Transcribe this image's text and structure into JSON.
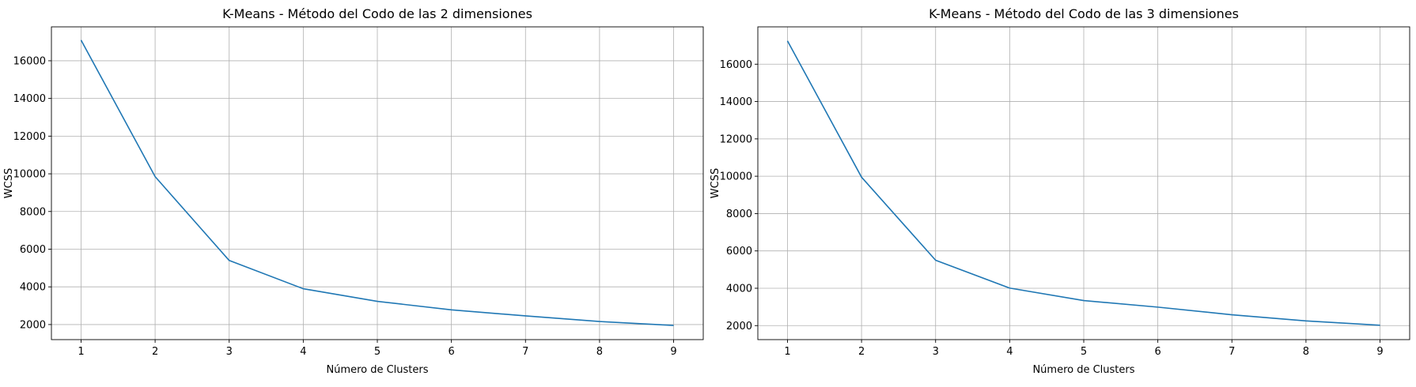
{
  "chart_data": [
    {
      "type": "line",
      "title": "K-Means - Método del Codo de las 2 dimensiones",
      "xlabel": "Número de Clusters",
      "ylabel": "WCSS",
      "x": [
        1,
        2,
        3,
        4,
        5,
        6,
        7,
        8,
        9
      ],
      "xticks": [
        1,
        2,
        3,
        4,
        5,
        6,
        7,
        8,
        9
      ],
      "yticks": [
        2000,
        4000,
        6000,
        8000,
        10000,
        12000,
        14000,
        16000
      ],
      "xlim": [
        0.6,
        9.4
      ],
      "ylim": [
        1200,
        17800
      ],
      "grid": true,
      "series": [
        {
          "values": [
            17100,
            9850,
            5400,
            3900,
            3230,
            2780,
            2460,
            2160,
            1950
          ],
          "color": "#1f77b4"
        }
      ]
    },
    {
      "type": "line",
      "title": "K-Means - Método del Codo de las 3 dimensiones",
      "xlabel": "Número de Clusters",
      "ylabel": "WCSS",
      "x": [
        1,
        2,
        3,
        4,
        5,
        6,
        7,
        8,
        9
      ],
      "xticks": [
        1,
        2,
        3,
        4,
        5,
        6,
        7,
        8,
        9
      ],
      "yticks": [
        2000,
        4000,
        6000,
        8000,
        10000,
        12000,
        14000,
        16000
      ],
      "xlim": [
        0.6,
        9.4
      ],
      "ylim": [
        1250,
        18000
      ],
      "grid": true,
      "series": [
        {
          "values": [
            17250,
            9950,
            5500,
            4010,
            3340,
            2990,
            2580,
            2250,
            2020
          ],
          "color": "#1f77b4"
        }
      ]
    }
  ]
}
